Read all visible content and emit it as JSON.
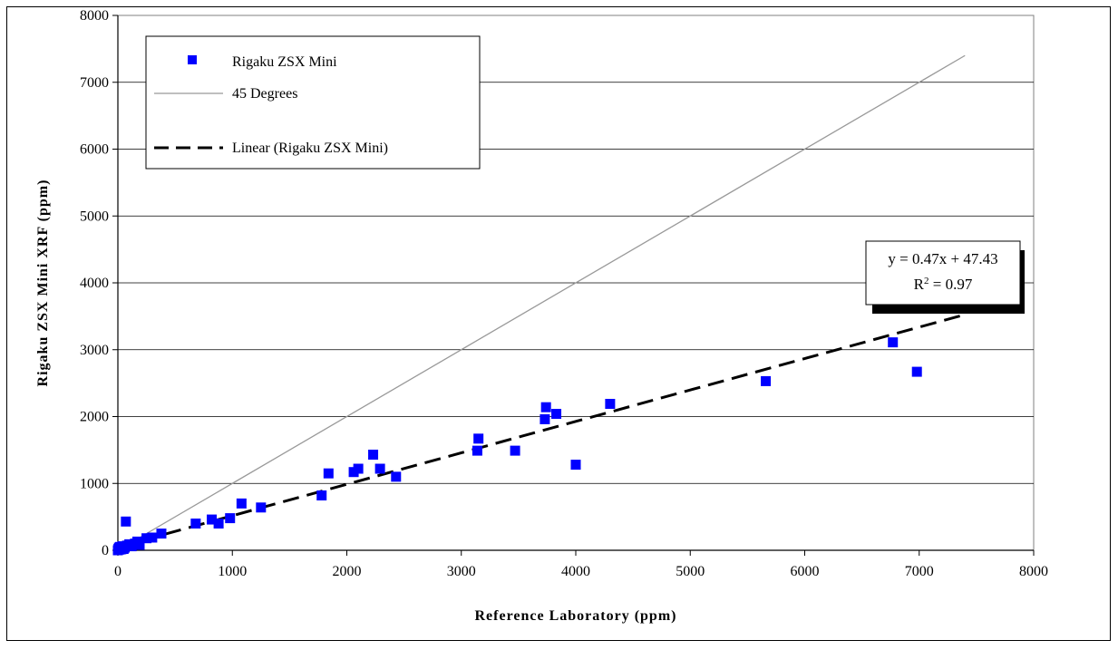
{
  "chart_data": {
    "type": "scatter",
    "title": "",
    "xlabel": "Reference Laboratory (ppm)",
    "ylabel": "Rigaku ZSX Mini XRF (ppm)",
    "xlim": [
      0,
      8000
    ],
    "ylim": [
      0,
      8000
    ],
    "x_ticks": [
      "0",
      "1000",
      "2000",
      "3000",
      "4000",
      "5000",
      "6000",
      "7000",
      "8000"
    ],
    "y_ticks": [
      "0",
      "1000",
      "2000",
      "3000",
      "4000",
      "5000",
      "6000",
      "7000",
      "8000"
    ],
    "grid": "horizontal",
    "legend_position": "top-left",
    "series": [
      {
        "name": "Rigaku ZSX Mini",
        "kind": "scatter",
        "marker": "square",
        "color": "#0000ff",
        "points": [
          [
            0,
            0
          ],
          [
            5,
            20
          ],
          [
            10,
            40
          ],
          [
            15,
            10
          ],
          [
            20,
            50
          ],
          [
            25,
            30
          ],
          [
            30,
            15
          ],
          [
            40,
            60
          ],
          [
            50,
            20
          ],
          [
            60,
            40
          ],
          [
            70,
            430
          ],
          [
            80,
            70
          ],
          [
            100,
            90
          ],
          [
            120,
            60
          ],
          [
            150,
            100
          ],
          [
            170,
            130
          ],
          [
            190,
            80
          ],
          [
            250,
            180
          ],
          [
            300,
            190
          ],
          [
            380,
            250
          ],
          [
            680,
            400
          ],
          [
            820,
            460
          ],
          [
            880,
            400
          ],
          [
            980,
            480
          ],
          [
            1080,
            700
          ],
          [
            1250,
            640
          ],
          [
            1780,
            820
          ],
          [
            1840,
            1150
          ],
          [
            2060,
            1170
          ],
          [
            2100,
            1220
          ],
          [
            2230,
            1430
          ],
          [
            2290,
            1220
          ],
          [
            2430,
            1100
          ],
          [
            3140,
            1490
          ],
          [
            3150,
            1670
          ],
          [
            3470,
            1490
          ],
          [
            3730,
            1960
          ],
          [
            3740,
            2140
          ],
          [
            3830,
            2040
          ],
          [
            4000,
            1280
          ],
          [
            4300,
            2190
          ],
          [
            5660,
            2530
          ],
          [
            6770,
            3110
          ],
          [
            6980,
            2670
          ]
        ]
      },
      {
        "name": "45 Degrees",
        "kind": "line",
        "color": "#999999",
        "points": [
          [
            0,
            0
          ],
          [
            7400,
            7400
          ]
        ]
      },
      {
        "name": "Linear (Rigaku ZSX Mini)",
        "kind": "trendline",
        "color": "#000000",
        "dashed": true,
        "slope": 0.47,
        "intercept": 47.43,
        "x_range": [
          0,
          7400
        ]
      }
    ],
    "annotations": {
      "equation": "y = 0.47x + 47.43",
      "r2_prefix": "R",
      "r2_sup": "2",
      "r2_suffix": " = 0.97"
    }
  }
}
